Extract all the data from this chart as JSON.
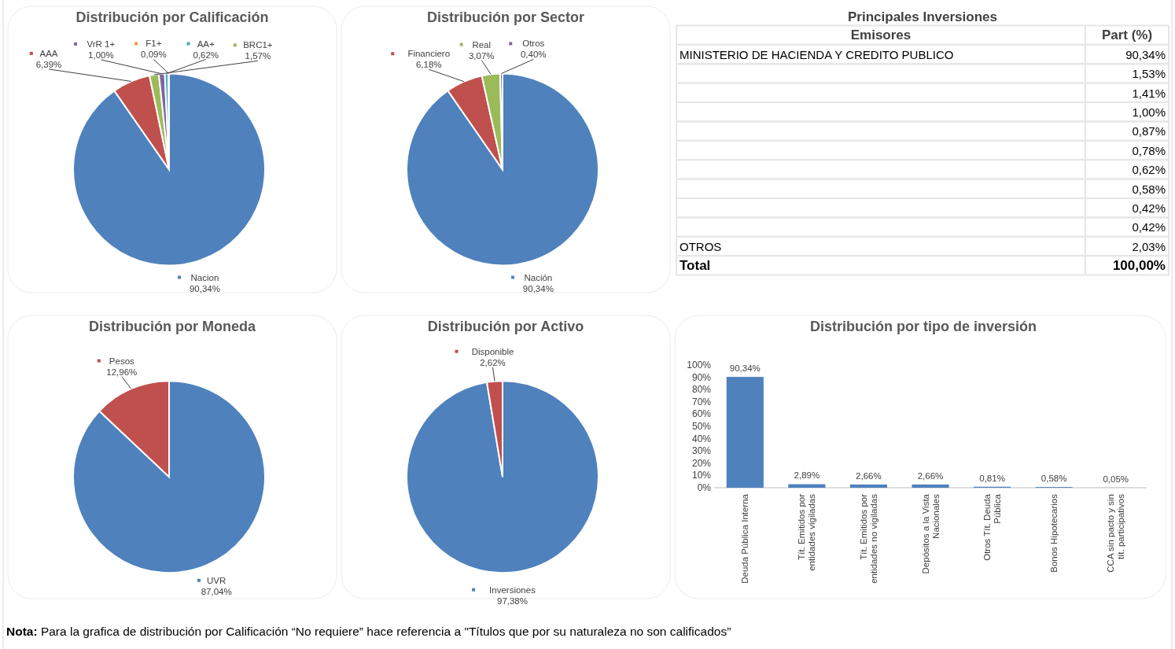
{
  "chart_data": [
    {
      "type": "pie",
      "title": "Distribución por Calificación",
      "categories": [
        "Nacion",
        "AAA",
        "BRC1+",
        "VrR 1+",
        "AA+",
        "F1+"
      ],
      "values": [
        90.34,
        6.39,
        1.57,
        1.0,
        0.62,
        0.09
      ],
      "value_labels": [
        "90,34%",
        "6,39%",
        "1,57%",
        "1,00%",
        "0,62%",
        "0,09%"
      ],
      "colors": [
        "#4f81bd",
        "#c0504d",
        "#9bbb59",
        "#8064a2",
        "#4bacc6",
        "#f79646"
      ],
      "legend": "top"
    },
    {
      "type": "pie",
      "title": "Distribución por Sector",
      "categories": [
        "Nación",
        "Financiero",
        "Real",
        "Otros"
      ],
      "values": [
        90.34,
        6.18,
        3.07,
        0.4
      ],
      "value_labels": [
        "90,34%",
        "6,18%",
        "3,07%",
        "0,40%"
      ],
      "colors": [
        "#4f81bd",
        "#c0504d",
        "#9bbb59",
        "#8064a2"
      ],
      "legend": "top"
    },
    {
      "type": "other",
      "title": "Principales Inversiones",
      "xlabel": "Emisores",
      "ylabel": "Part (%)",
      "categories": [
        "MINISTERIO DE HACIENDA Y CREDITO PUBLICO",
        null,
        null,
        null,
        null,
        null,
        null,
        null,
        null,
        null,
        "OTROS",
        "Total"
      ],
      "value_labels": [
        "90,34%",
        "1,53%",
        "1,41%",
        "1,00%",
        "0,87%",
        "0,78%",
        "0,62%",
        "0,58%",
        "0,42%",
        "0,42%",
        "2,03%",
        "100,00%"
      ]
    },
    {
      "type": "pie",
      "title": "Distribución por Moneda",
      "categories": [
        "UVR",
        "Pesos"
      ],
      "values": [
        87.04,
        12.96
      ],
      "value_labels": [
        "87,04%",
        "12,96%"
      ],
      "colors": [
        "#4f81bd",
        "#c0504d"
      ],
      "legend": "top"
    },
    {
      "type": "pie",
      "title": "Distribución por Activo",
      "categories": [
        "Inversiones",
        "Disponible"
      ],
      "values": [
        97.38,
        2.62
      ],
      "value_labels": [
        "97,38%",
        "2,62%"
      ],
      "colors": [
        "#4f81bd",
        "#c0504d"
      ],
      "legend": "top"
    },
    {
      "type": "bar",
      "title": "Distribución por tipo de inversión",
      "categories": [
        "Deuda Pública Interna",
        "Tít. Emitidos por entidades vigiladas",
        "Tít. Emitidos por entidades no vigiladas",
        "Depósitos a la Vista Nacionales",
        "Otros Tít. Deuda Pública",
        "Bonos Hipotecarios",
        "CCA sin pacto y sin tít. participativos"
      ],
      "values": [
        90.34,
        2.89,
        2.66,
        2.66,
        0.81,
        0.58,
        0.05
      ],
      "value_labels": [
        "90,34%",
        "2,89%",
        "2,66%",
        "2,66%",
        "0,81%",
        "0,58%",
        "0,05%"
      ],
      "color": "#4f81bd",
      "ylim": [
        0,
        100
      ],
      "yticks": [
        {
          "value": 0,
          "label": "0%"
        },
        {
          "value": 10,
          "label": "10%"
        },
        {
          "value": 20,
          "label": "20%"
        },
        {
          "value": 30,
          "label": "30%"
        },
        {
          "value": 40,
          "label": "40%"
        },
        {
          "value": 50,
          "label": "50%"
        },
        {
          "value": 60,
          "label": "60%"
        },
        {
          "value": 70,
          "label": "70%"
        },
        {
          "value": 80,
          "label": "80%"
        },
        {
          "value": 90,
          "label": "90%"
        },
        {
          "value": 100,
          "label": "100%"
        }
      ],
      "annotations": [
        "Nota: Para la grafica de distribución por Calificación “No requiere” hace referencia a  \"Títulos que por su naturaleza no son calificados”"
      ]
    }
  ]
}
